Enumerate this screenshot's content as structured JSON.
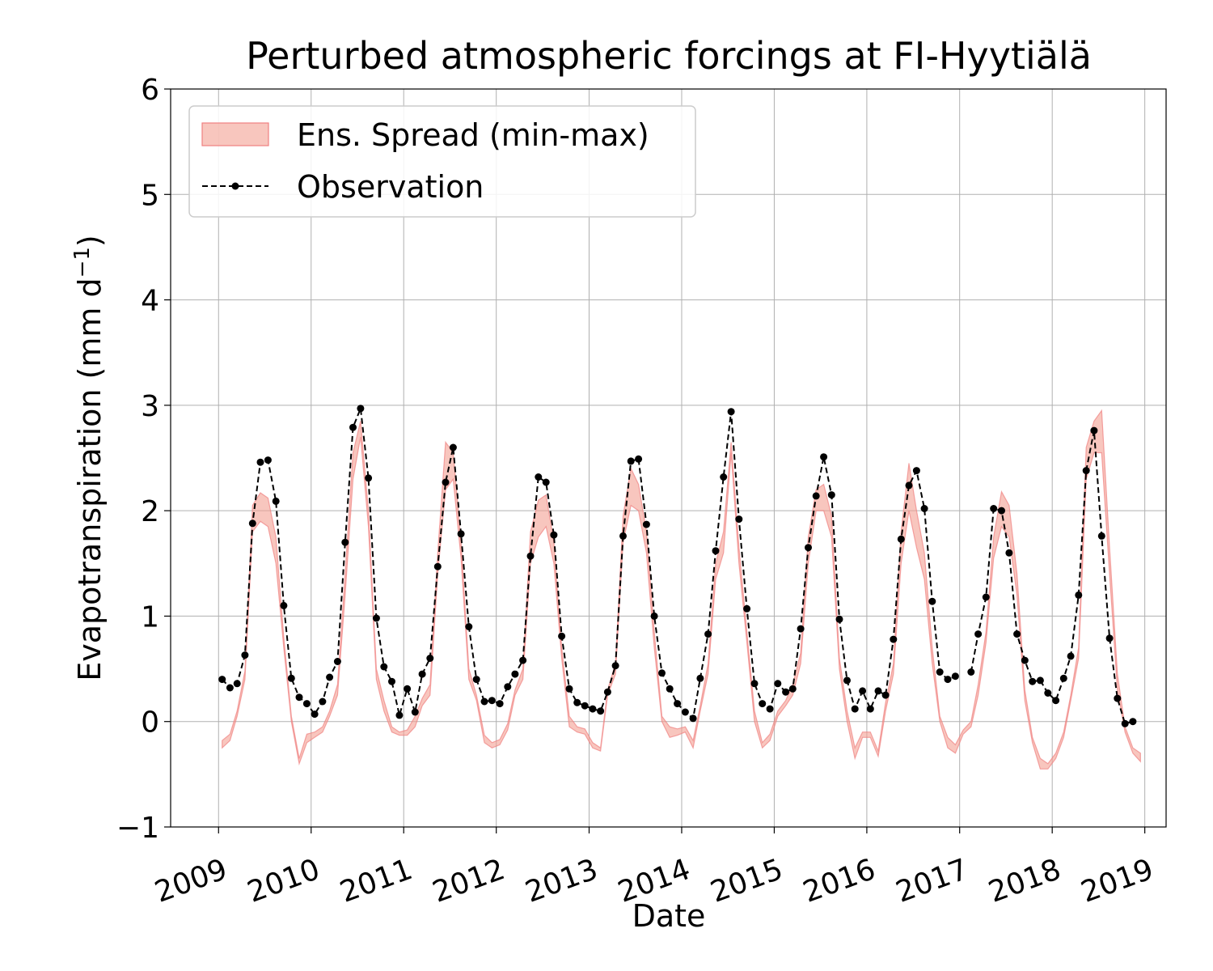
{
  "chart_data": {
    "type": "line",
    "title": "Perturbed atmospheric forcings at FI-Hyytiälä",
    "xlabel": "Date",
    "ylabel": "Evapotranspiration  (mm d",
    "ylabel_sup": "−1",
    "ylabel_close": ")",
    "ylim": [
      -1,
      6
    ],
    "yticks": [
      -1,
      0,
      1,
      2,
      3,
      4,
      5,
      6
    ],
    "ytick_labels": [
      "−1",
      "0",
      "1",
      "2",
      "3",
      "4",
      "5",
      "6"
    ],
    "xlim": [
      "2008-06-26",
      "2019-03-26"
    ],
    "xticks": [
      "2009-01-01",
      "2010-01-01",
      "2011-01-01",
      "2012-01-01",
      "2013-01-01",
      "2014-01-01",
      "2015-01-01",
      "2016-01-01",
      "2017-01-01",
      "2018-01-01",
      "2019-01-01"
    ],
    "xtick_labels": [
      "2009",
      "2010",
      "2011",
      "2012",
      "2013",
      "2014",
      "2015",
      "2016",
      "2017",
      "2018",
      "2019"
    ],
    "grid": true,
    "legend": {
      "placement": "top-left",
      "entries": [
        "Ens. Spread (min-max)",
        "Observation"
      ]
    },
    "colors": {
      "spread_fill": "#f4a093",
      "spread_edge": "#f08080",
      "observation": "#000000",
      "grid": "#b0b0b0"
    },
    "x": [
      "2009-01",
      "2009-02",
      "2009-03",
      "2009-04",
      "2009-05",
      "2009-06",
      "2009-07",
      "2009-08",
      "2009-09",
      "2009-10",
      "2009-11",
      "2009-12",
      "2010-01",
      "2010-02",
      "2010-03",
      "2010-04",
      "2010-05",
      "2010-06",
      "2010-07",
      "2010-08",
      "2010-09",
      "2010-10",
      "2010-11",
      "2010-12",
      "2011-01",
      "2011-02",
      "2011-03",
      "2011-04",
      "2011-05",
      "2011-06",
      "2011-07",
      "2011-08",
      "2011-09",
      "2011-10",
      "2011-11",
      "2011-12",
      "2012-01",
      "2012-02",
      "2012-03",
      "2012-04",
      "2012-05",
      "2012-06",
      "2012-07",
      "2012-08",
      "2012-09",
      "2012-10",
      "2012-11",
      "2012-12",
      "2013-01",
      "2013-02",
      "2013-03",
      "2013-04",
      "2013-05",
      "2013-06",
      "2013-07",
      "2013-08",
      "2013-09",
      "2013-10",
      "2013-11",
      "2013-12",
      "2014-01",
      "2014-02",
      "2014-03",
      "2014-04",
      "2014-05",
      "2014-06",
      "2014-07",
      "2014-08",
      "2014-09",
      "2014-10",
      "2014-11",
      "2014-12",
      "2015-01",
      "2015-02",
      "2015-03",
      "2015-04",
      "2015-05",
      "2015-06",
      "2015-07",
      "2015-08",
      "2015-09",
      "2015-10",
      "2015-11",
      "2015-12",
      "2016-01",
      "2016-02",
      "2016-03",
      "2016-04",
      "2016-05",
      "2016-06",
      "2016-07",
      "2016-08",
      "2016-09",
      "2016-10",
      "2016-11",
      "2016-12",
      "2017-01",
      "2017-02",
      "2017-03",
      "2017-04",
      "2017-05",
      "2017-06",
      "2017-07",
      "2017-08",
      "2017-09",
      "2017-10",
      "2017-11",
      "2017-12",
      "2018-01",
      "2018-02",
      "2018-03",
      "2018-04",
      "2018-05",
      "2018-06",
      "2018-07",
      "2018-08",
      "2018-09",
      "2018-10",
      "2018-11",
      "2018-12"
    ],
    "series": [
      {
        "name": "Observation",
        "values": [
          0.4,
          0.32,
          0.36,
          0.63,
          1.88,
          2.46,
          2.48,
          2.09,
          1.1,
          0.41,
          0.23,
          0.17,
          0.07,
          0.19,
          0.42,
          0.57,
          1.7,
          2.79,
          2.97,
          2.31,
          0.98,
          0.52,
          0.38,
          0.06,
          0.31,
          0.09,
          0.45,
          0.6,
          1.47,
          2.27,
          2.6,
          1.78,
          0.9,
          0.4,
          0.19,
          0.2,
          0.17,
          0.33,
          0.45,
          0.58,
          1.57,
          2.32,
          2.27,
          1.77,
          0.81,
          0.31,
          0.18,
          0.15,
          0.12,
          0.1,
          0.28,
          0.53,
          1.76,
          2.47,
          2.49,
          1.87,
          1.0,
          0.46,
          0.31,
          0.17,
          0.09,
          0.03,
          0.41,
          0.83,
          1.62,
          2.32,
          2.94,
          1.92,
          1.07,
          0.36,
          0.17,
          0.12,
          0.36,
          0.28,
          0.31,
          0.88,
          1.65,
          2.14,
          2.51,
          2.15,
          0.97,
          0.39,
          0.12,
          0.29,
          0.12,
          0.29,
          0.25,
          0.78,
          1.73,
          2.24,
          2.38,
          2.02,
          1.14,
          0.47,
          0.4,
          0.43,
          null,
          0.47,
          0.83,
          1.18,
          2.02,
          2.0,
          1.6,
          0.83,
          0.58,
          0.38,
          0.39,
          0.27,
          0.2,
          0.41,
          0.62,
          1.2,
          2.38,
          2.76,
          1.76,
          0.79,
          0.22,
          -0.02,
          0.0,
          null
        ]
      },
      {
        "name": "Ens. Spread (min-max)",
        "min": [
          -0.25,
          -0.18,
          0.05,
          0.4,
          1.8,
          1.9,
          1.85,
          1.5,
          0.7,
          0.0,
          -0.4,
          -0.2,
          -0.15,
          -0.1,
          0.05,
          0.25,
          1.2,
          2.3,
          2.7,
          1.85,
          0.4,
          0.1,
          -0.1,
          -0.13,
          -0.13,
          -0.05,
          0.15,
          0.25,
          1.4,
          2.2,
          2.3,
          1.55,
          0.4,
          0.2,
          -0.2,
          -0.25,
          -0.22,
          -0.08,
          0.25,
          0.4,
          1.5,
          1.75,
          1.85,
          1.5,
          0.6,
          -0.05,
          -0.1,
          -0.12,
          -0.25,
          -0.28,
          0.25,
          0.45,
          1.7,
          2.05,
          2.0,
          1.6,
          0.7,
          0.0,
          -0.15,
          -0.13,
          -0.1,
          -0.25,
          0.1,
          0.45,
          1.35,
          1.6,
          2.55,
          1.5,
          0.75,
          0.0,
          -0.25,
          -0.18,
          0.05,
          0.15,
          0.25,
          0.55,
          1.5,
          2.0,
          2.0,
          1.75,
          0.5,
          0.0,
          -0.35,
          -0.15,
          -0.15,
          -0.33,
          0.1,
          0.45,
          1.5,
          2.0,
          1.65,
          1.35,
          0.55,
          0.0,
          -0.25,
          -0.3,
          -0.12,
          -0.05,
          0.25,
          0.75,
          1.55,
          1.85,
          1.75,
          1.2,
          0.2,
          -0.2,
          -0.45,
          -0.45,
          -0.35,
          -0.15,
          0.2,
          0.6,
          2.3,
          2.55,
          2.55,
          1.4,
          0.3,
          -0.1,
          -0.3,
          -0.38
        ],
        "max": [
          -0.18,
          -0.12,
          0.1,
          0.48,
          2.05,
          2.17,
          2.12,
          1.75,
          0.8,
          0.05,
          -0.35,
          -0.12,
          -0.1,
          -0.05,
          0.1,
          0.35,
          1.4,
          2.55,
          2.85,
          2.0,
          0.5,
          0.2,
          -0.05,
          -0.1,
          -0.08,
          0.05,
          0.22,
          0.35,
          1.6,
          2.65,
          2.55,
          1.7,
          0.5,
          0.25,
          -0.13,
          -0.2,
          -0.17,
          -0.02,
          0.3,
          0.5,
          1.8,
          2.1,
          2.15,
          1.7,
          0.7,
          0.05,
          -0.05,
          -0.07,
          -0.2,
          -0.25,
          0.3,
          0.55,
          1.95,
          2.4,
          2.25,
          1.8,
          0.85,
          0.05,
          -0.05,
          -0.07,
          -0.05,
          -0.18,
          0.15,
          0.55,
          1.5,
          1.8,
          2.65,
          1.65,
          0.85,
          0.1,
          -0.2,
          -0.12,
          0.1,
          0.2,
          0.35,
          0.65,
          1.75,
          2.2,
          2.25,
          1.95,
          0.6,
          0.1,
          -0.25,
          -0.1,
          -0.1,
          -0.28,
          0.18,
          0.55,
          1.8,
          2.45,
          2.0,
          1.6,
          0.7,
          0.05,
          -0.15,
          -0.22,
          -0.08,
          0.0,
          0.35,
          0.85,
          1.75,
          2.18,
          2.05,
          1.4,
          0.3,
          -0.15,
          -0.35,
          -0.4,
          -0.3,
          -0.1,
          0.25,
          0.7,
          2.6,
          2.85,
          2.95,
          1.65,
          0.45,
          -0.05,
          -0.25,
          -0.3
        ]
      }
    ]
  }
}
